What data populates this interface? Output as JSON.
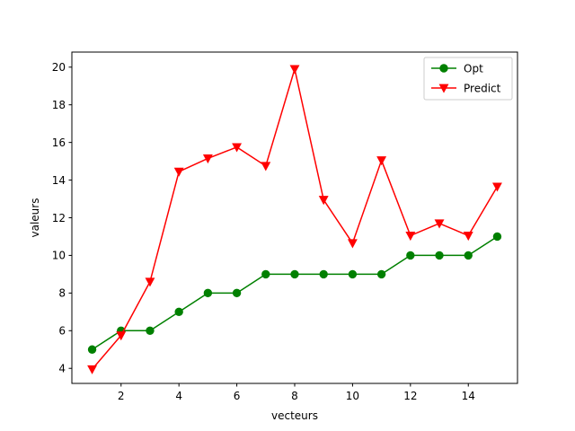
{
  "chart_data": {
    "type": "line",
    "title": "",
    "xlabel": "vecteurs",
    "ylabel": "valeurs",
    "xlim": [
      0.3,
      15.7
    ],
    "ylim": [
      3.2,
      20.8
    ],
    "xticks": [
      2,
      4,
      6,
      8,
      10,
      12,
      14
    ],
    "yticks": [
      4,
      6,
      8,
      10,
      12,
      14,
      16,
      18,
      20
    ],
    "grid": false,
    "legend_position": "top-right",
    "x": [
      1,
      2,
      3,
      4,
      5,
      6,
      7,
      8,
      9,
      10,
      11,
      12,
      13,
      14,
      15
    ],
    "series": [
      {
        "name": "Opt",
        "color": "#008000",
        "marker": "circle",
        "values": [
          5,
          6,
          6,
          7,
          8,
          8,
          9,
          9,
          9,
          9,
          9,
          10,
          10,
          10,
          11
        ]
      },
      {
        "name": "Predict",
        "color": "#ff0000",
        "marker": "triangle-down",
        "values": [
          3.95,
          5.75,
          8.6,
          14.45,
          15.15,
          15.75,
          14.75,
          19.9,
          12.95,
          10.65,
          15.05,
          11.05,
          11.7,
          11.05,
          13.65
        ]
      }
    ]
  }
}
